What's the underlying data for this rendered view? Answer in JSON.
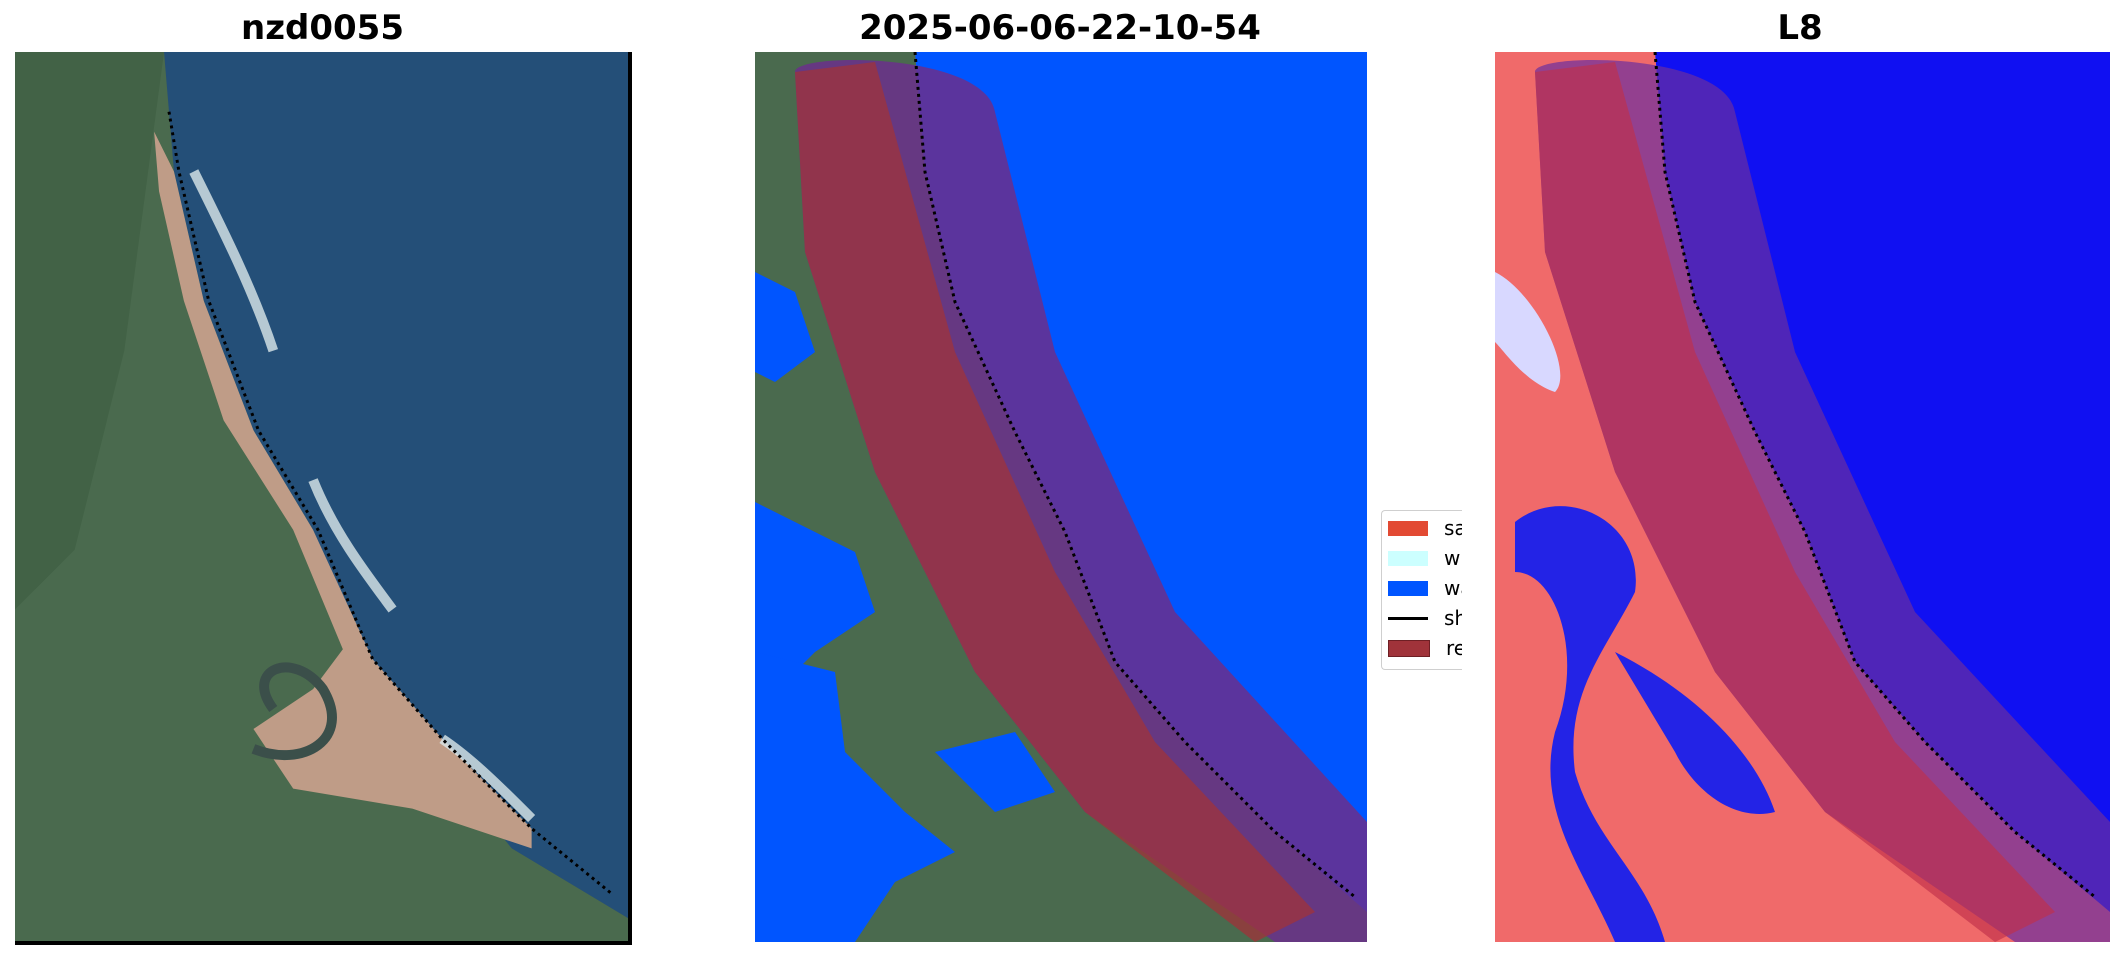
{
  "panels": [
    {
      "title": "nzd0055"
    },
    {
      "title": "2025-06-06-22-10-54"
    },
    {
      "title": "L8"
    }
  ],
  "legend": {
    "items": [
      {
        "label": "sand",
        "color": "#e24a33"
      },
      {
        "label": "white-water",
        "color": "#ccffff"
      },
      {
        "label": "water",
        "color": "#0055ff"
      },
      {
        "label": "shoreline",
        "color": "#000000"
      },
      {
        "label": "reference shoreline buffer",
        "color": "#a0333a"
      }
    ]
  }
}
